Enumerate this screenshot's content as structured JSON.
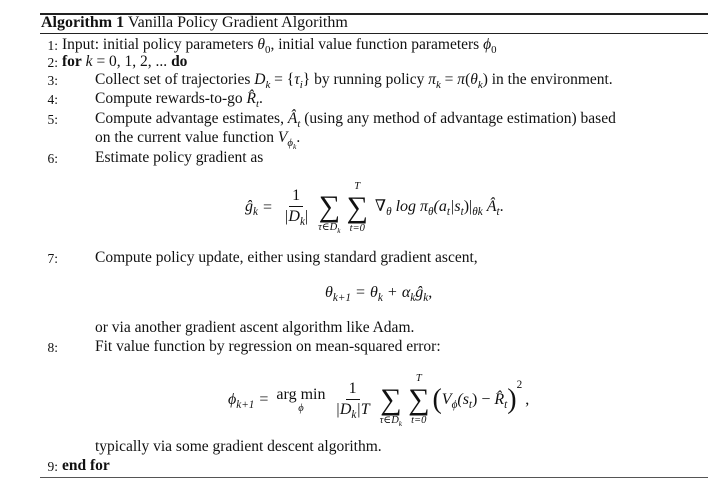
{
  "algorithm": {
    "label": "Algorithm 1",
    "title": "Vanilla Policy Gradient Algorithm",
    "lines": [
      {
        "num": "1:",
        "parts": [
          "Input: initial policy parameters ",
          "θ",
          "0",
          ", initial value function parameters ",
          "ϕ",
          "0"
        ]
      },
      {
        "num": "2:",
        "parts": [
          "for",
          " k",
          " = 0, 1, 2, ... ",
          "do"
        ]
      },
      {
        "num": "3:",
        "parts": [
          "Collect set of trajectories ",
          "D",
          "k",
          " = {",
          "τ",
          "i",
          "} by running policy ",
          "π",
          "k",
          " = ",
          "π",
          "(",
          "θ",
          "k",
          ") in the environment."
        ]
      },
      {
        "num": "4:",
        "parts": [
          "Compute rewards-to-go ",
          "R̂",
          "t",
          "."
        ]
      },
      {
        "num": "5:",
        "parts": [
          "Compute advantage estimates, ",
          "Â",
          "t",
          " (using any method of advantage estimation) based"
        ],
        "cont": [
          "on the current value function ",
          "V",
          "ϕ",
          "k",
          "."
        ]
      },
      {
        "num": "6:",
        "parts": [
          "Estimate policy gradient as"
        ]
      },
      {
        "num": "7:",
        "parts": [
          "Compute policy update, either using standard gradient ascent,"
        ],
        "cont": [
          "or via another gradient ascent algorithm like Adam."
        ]
      },
      {
        "num": "8:",
        "parts": [
          "Fit value function by regression on mean-squared error:"
        ],
        "cont": [
          "typically via some gradient descent algorithm."
        ]
      },
      {
        "num": "9:",
        "parts": [
          "end for"
        ]
      }
    ],
    "eq1": {
      "lhs": "ĝ",
      "lhs_sub": "k",
      "eq": "=",
      "num": "1",
      "den": "|D",
      "den_sub": "k",
      "den_end": "|",
      "sum1_lower": "τ∈D",
      "sum1_lower_sub": "k",
      "sum2_upper": "T",
      "sum2_lower": "t=0",
      "body": "∇",
      "body_sub": "θ",
      "body2": " log π",
      "body2_sub": "θ",
      "body3": "(a",
      "body3_sub": "t",
      "body4": "|s",
      "body4_sub": "t",
      "body5": ")|",
      "body5_sub": "θk",
      "tail": " Â",
      "tail_sub": "t",
      "end": "."
    },
    "eq2": {
      "lhs": "θ",
      "lhs_sub": "k+1",
      "eq": "=",
      "a": "θ",
      "a_sub": "k",
      "plus": "+",
      "b": "α",
      "b_sub": "k",
      "c": "ĝ",
      "c_sub": "k",
      "end": ","
    },
    "eq3": {
      "lhs": "ϕ",
      "lhs_sub": "k+1",
      "eq": "=",
      "argmin": "arg min",
      "argmin_sub": "ϕ",
      "num": "1",
      "den": "|D",
      "den_sub": "k",
      "den_end": "|T",
      "sum1_lower": "τ∈D",
      "sum1_lower_sub": "k",
      "sum2_upper": "T",
      "sum2_lower": "t=0",
      "open": "(",
      "v": "V",
      "v_sub": "ϕ",
      "v2": "(s",
      "v2_sub": "t",
      "v3": ") − ",
      "r": "R̂",
      "r_sub": "t",
      "close": ")",
      "sq": "2",
      "end": ","
    }
  }
}
